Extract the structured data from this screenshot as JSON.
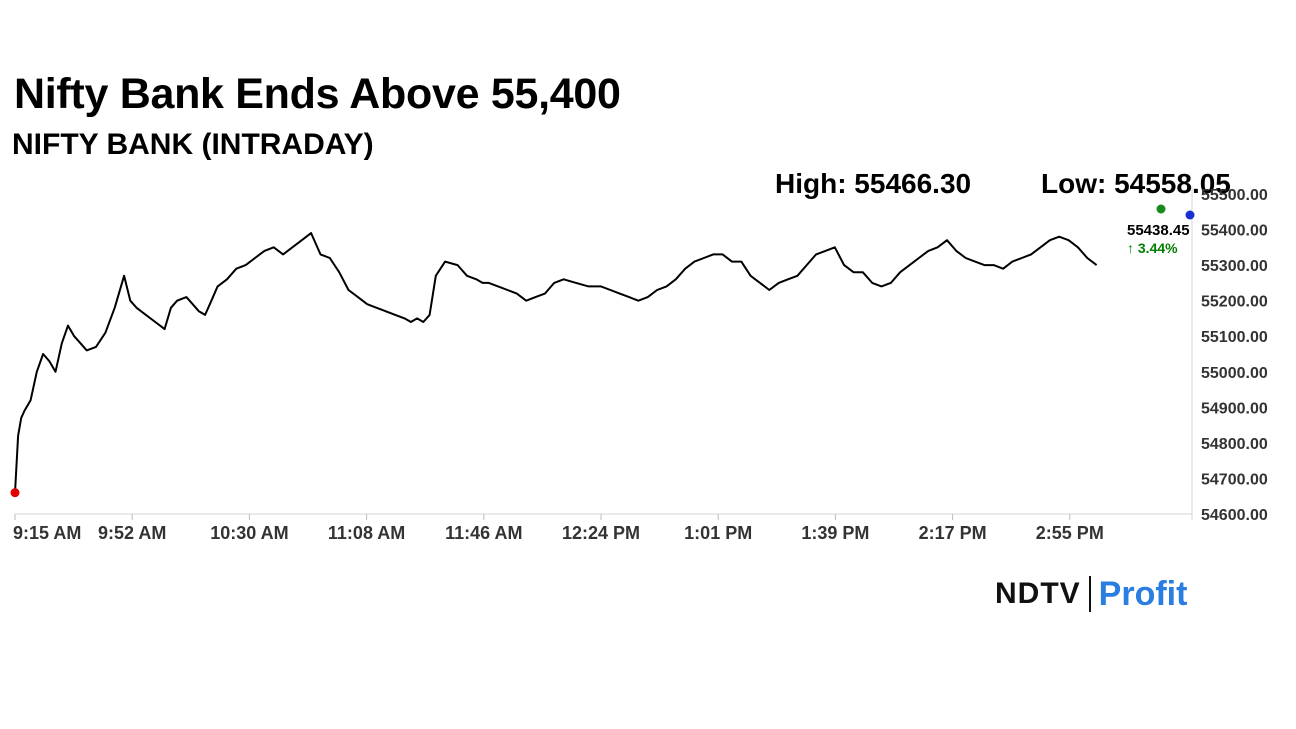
{
  "headline": "Nifty Bank Ends Above 55,400",
  "subtitle": "NIFTY BANK (INTRADAY)",
  "stats": {
    "high": "High: 55466.30",
    "low": "Low: 54558.05"
  },
  "last_value": "55438.45",
  "change": "↑ 3.44%",
  "colors": {
    "line": "#000000",
    "up": "#008000",
    "start_dot": "#e00000",
    "high_dot": "#1a8a1a",
    "low_dot": "#1a2fd0",
    "brand": "#2a7de1"
  },
  "logo": {
    "left": "NDTV",
    "right": "Profit"
  },
  "chart_data": {
    "type": "line",
    "title": "NIFTY BANK (INTRADAY)",
    "xlabel": "",
    "ylabel": "",
    "x_ticks": [
      "9:15 AM",
      "9:52 AM",
      "10:30 AM",
      "11:08 AM",
      "11:46 AM",
      "12:24 PM",
      "1:01 PM",
      "1:39 PM",
      "2:17 PM",
      "2:55 PM"
    ],
    "y_ticks": [
      "54600.00",
      "54700.00",
      "54800.00",
      "54900.00",
      "55000.00",
      "55100.00",
      "55200.00",
      "55300.00",
      "55400.00",
      "55500.00"
    ],
    "ylim": [
      54600,
      55500
    ],
    "x_minutes_range": [
      0,
      376
    ],
    "series": [
      {
        "name": "NIFTY BANK",
        "x_minutes": [
          0,
          1,
          2,
          3,
          5,
          7,
          9,
          11,
          13,
          15,
          17,
          19,
          21,
          23,
          26,
          29,
          32,
          35,
          37,
          39,
          42,
          45,
          48,
          50,
          52,
          55,
          57,
          59,
          61,
          63,
          65,
          68,
          71,
          74,
          77,
          80,
          83,
          86,
          89,
          92,
          95,
          98,
          101,
          104,
          107,
          110,
          113,
          116,
          119,
          122,
          125,
          127,
          129,
          131,
          133,
          135,
          138,
          142,
          145,
          148,
          150,
          152,
          155,
          158,
          161,
          164,
          167,
          170,
          173,
          176,
          180,
          184,
          188,
          191,
          194,
          197,
          200,
          203,
          206,
          209,
          212,
          215,
          218,
          221,
          224,
          227,
          230,
          233,
          236,
          239,
          242,
          245,
          248,
          251,
          254,
          257,
          260,
          263,
          266,
          269,
          272,
          275,
          278,
          281,
          284,
          287,
          290,
          293,
          296,
          299,
          302,
          305,
          308,
          311,
          314,
          317,
          320,
          323,
          326,
          329,
          332,
          335,
          338,
          341,
          344,
          347
        ],
        "values": [
          54660,
          54820,
          54870,
          54890,
          54920,
          55000,
          55050,
          55030,
          55000,
          55080,
          55130,
          55100,
          55080,
          55060,
          55070,
          55110,
          55180,
          55270,
          55200,
          55180,
          55160,
          55140,
          55120,
          55180,
          55200,
          55210,
          55190,
          55170,
          55160,
          55200,
          55240,
          55260,
          55290,
          55300,
          55320,
          55340,
          55350,
          55330,
          55350,
          55370,
          55390,
          55330,
          55320,
          55280,
          55230,
          55210,
          55190,
          55180,
          55170,
          55160,
          55150,
          55140,
          55150,
          55140,
          55160,
          55270,
          55310,
          55300,
          55270,
          55260,
          55250,
          55250,
          55240,
          55230,
          55220,
          55200,
          55210,
          55220,
          55250,
          55260,
          55250,
          55240,
          55240,
          55230,
          55220,
          55210,
          55200,
          55210,
          55230,
          55240,
          55260,
          55290,
          55310,
          55320,
          55330,
          55330,
          55310,
          55310,
          55270,
          55250,
          55230,
          55250,
          55260,
          55270,
          55300,
          55330,
          55340,
          55350,
          55300,
          55280,
          55280,
          55250,
          55240,
          55250,
          55280,
          55300,
          55320,
          55340,
          55350,
          55370,
          55340,
          55320,
          55310,
          55300,
          55300,
          55290,
          55310,
          55320,
          55330,
          55350,
          55370,
          55380,
          55370,
          55350,
          55320,
          55300
        ]
      }
    ]
  }
}
